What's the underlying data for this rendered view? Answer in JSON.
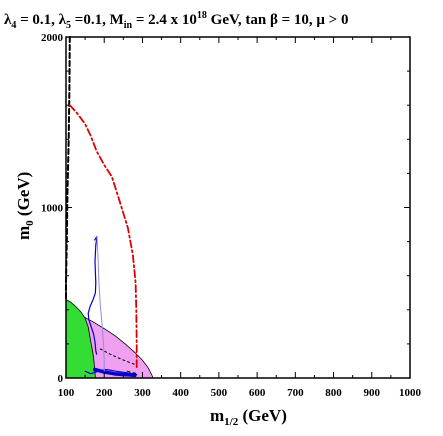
{
  "chart_data": {
    "type": "line",
    "title": {
      "p1": "λ",
      "s1": "4",
      "p2": " = 0.1, λ",
      "s2": "5",
      "p3": " =0.1, M",
      "s3": "in",
      "p4": " = 2.4 x 10",
      "s4": "18",
      "p5": " GeV, tan β = 10,  μ > 0"
    },
    "xlabel": {
      "main": "m",
      "sub": "1/2",
      "unit": " (GeV)"
    },
    "ylabel": {
      "main": "m",
      "sub": "0",
      "unit": " (GeV)"
    },
    "xlim": [
      100,
      1000
    ],
    "ylim": [
      0,
      2000
    ],
    "x_ticks": [
      "100",
      "200",
      "300",
      "400",
      "500",
      "600",
      "700",
      "800",
      "900",
      "1000"
    ],
    "y_ticks": [
      "0",
      "1000",
      "2000"
    ],
    "grid": false,
    "regions": [
      {
        "id": "pink",
        "color": "#f0a0f0",
        "outline": "#000000",
        "points": [
          [
            100,
            0
          ],
          [
            100,
            400
          ],
          [
            120,
            385
          ],
          [
            145,
            360
          ],
          [
            170,
            330
          ],
          [
            200,
            290
          ],
          [
            230,
            245
          ],
          [
            255,
            200
          ],
          [
            280,
            150
          ],
          [
            300,
            105
          ],
          [
            315,
            60
          ],
          [
            325,
            15
          ],
          [
            328,
            0
          ]
        ]
      },
      {
        "id": "green",
        "color": "#33dd33",
        "outline": "#000000",
        "points": [
          [
            100,
            0
          ],
          [
            100,
            460
          ],
          [
            112,
            445
          ],
          [
            125,
            420
          ],
          [
            140,
            385
          ],
          [
            150,
            350
          ],
          [
            158,
            300
          ],
          [
            162,
            250
          ],
          [
            166,
            200
          ],
          [
            170,
            150
          ],
          [
            173,
            100
          ],
          [
            175,
            50
          ],
          [
            177,
            0
          ]
        ]
      }
    ],
    "series": [
      {
        "id": "black-dashed",
        "color": "#000000",
        "dash": "5,3",
        "width": 2,
        "points": [
          [
            110,
            2000
          ],
          [
            109,
            1700
          ],
          [
            107,
            1400
          ],
          [
            104,
            1100
          ],
          [
            102,
            800
          ],
          [
            100,
            560
          ],
          [
            100,
            460
          ]
        ]
      },
      {
        "id": "red-dash-dot",
        "color": "#dd0000",
        "dash": "7,3,2,3",
        "width": 1.8,
        "points": [
          [
            110,
            1600
          ],
          [
            130,
            1550
          ],
          [
            150,
            1490
          ],
          [
            165,
            1420
          ],
          [
            180,
            1330
          ],
          [
            200,
            1250
          ],
          [
            220,
            1180
          ],
          [
            240,
            1040
          ],
          [
            262,
            880
          ],
          [
            275,
            720
          ],
          [
            282,
            560
          ],
          [
            284,
            400
          ],
          [
            285,
            200
          ],
          [
            285,
            60
          ]
        ]
      },
      {
        "id": "blue-upper",
        "color": "#0000cc",
        "dash": "",
        "width": 1.2,
        "points": [
          [
            175,
            810
          ],
          [
            181,
            830
          ],
          [
            178,
            780
          ],
          [
            176,
            680
          ],
          [
            178,
            560
          ],
          [
            177,
            500
          ],
          [
            171,
            460
          ],
          [
            163,
            420
          ],
          [
            158,
            380
          ],
          [
            160,
            340
          ],
          [
            166,
            300
          ],
          [
            172,
            260
          ],
          [
            176,
            210
          ],
          [
            178,
            160
          ],
          [
            180,
            140
          ]
        ]
      },
      {
        "id": "blue-lower",
        "color": "#0000cc",
        "dash": "",
        "width": 1.2,
        "points": [
          [
            150,
            40
          ],
          [
            165,
            25
          ],
          [
            185,
            40
          ],
          [
            205,
            50
          ],
          [
            230,
            40
          ],
          [
            260,
            30
          ],
          [
            285,
            20
          ]
        ]
      },
      {
        "id": "blue-band",
        "color": "#0000cc",
        "dash": "",
        "width": 3.5,
        "points": [
          [
            175,
            50
          ],
          [
            200,
            35
          ],
          [
            225,
            25
          ],
          [
            250,
            20
          ],
          [
            265,
            18
          ],
          [
            280,
            15
          ]
        ]
      },
      {
        "id": "purple-thin",
        "color": "#9090e0",
        "dash": "",
        "width": 1,
        "points": [
          [
            181,
            830
          ],
          [
            184,
            700
          ],
          [
            186,
            560
          ],
          [
            190,
            420
          ],
          [
            195,
            300
          ],
          [
            198,
            200
          ],
          [
            200,
            100
          ],
          [
            200,
            40
          ]
        ]
      },
      {
        "id": "black-dotted",
        "color": "#000000",
        "dash": "2,3",
        "width": 1,
        "points": [
          [
            190,
            170
          ],
          [
            215,
            140
          ],
          [
            240,
            115
          ],
          [
            262,
            95
          ],
          [
            280,
            80
          ]
        ]
      },
      {
        "id": "black-dashed-low",
        "color": "#000000",
        "dash": "3,3",
        "width": 1,
        "points": [
          [
            260,
            40
          ],
          [
            272,
            32
          ],
          [
            282,
            28
          ]
        ]
      }
    ]
  }
}
